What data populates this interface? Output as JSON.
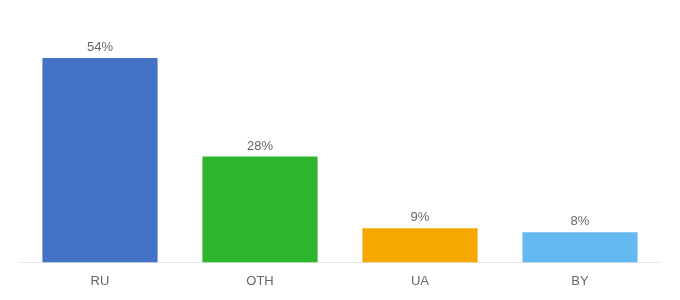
{
  "chart_data": {
    "type": "bar",
    "categories": [
      "RU",
      "OTH",
      "UA",
      "BY"
    ],
    "values": [
      54,
      28,
      9,
      8
    ],
    "value_labels": [
      "54%",
      "28%",
      "9%",
      "8%"
    ],
    "colors": [
      "#4472c4",
      "#2db52d",
      "#f5a800",
      "#64b9f0"
    ],
    "ylim": [
      0,
      63
    ],
    "grid": false,
    "data_labels": true,
    "tick_labels": "x"
  }
}
